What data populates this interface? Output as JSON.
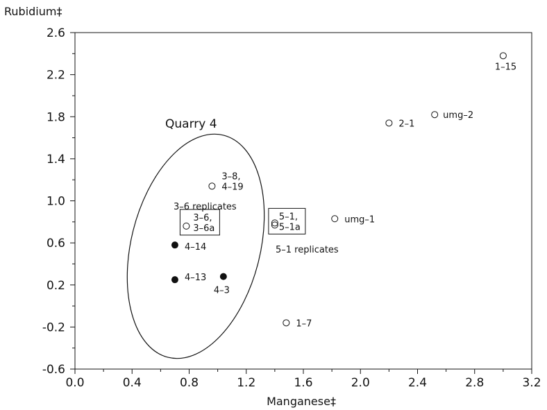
{
  "chart_data": {
    "type": "scatter",
    "xlabel": "Manganese‡",
    "ylabel": "Rubidium‡",
    "xlim": [
      0.0,
      3.2
    ],
    "ylim": [
      -0.6,
      2.6
    ],
    "xticks": [
      "0.0",
      "0.4",
      "0.8",
      "1.2",
      "1.6",
      "2.0",
      "2.4",
      "2.8",
      "3.2"
    ],
    "yticks": [
      "-0.6",
      "-0.2",
      "0.2",
      "0.6",
      "1.0",
      "1.4",
      "1.8",
      "2.2",
      "2.6"
    ],
    "grid": false,
    "points": [
      {
        "label": "1–15",
        "x": 3.0,
        "y": 2.38,
        "marker": "open"
      },
      {
        "label": "umg–2",
        "x": 2.52,
        "y": 1.82,
        "marker": "open"
      },
      {
        "label": "2–1",
        "x": 2.2,
        "y": 1.74,
        "marker": "open"
      },
      {
        "label": "3–8,",
        "label2": "4–19",
        "x": 0.96,
        "y": 1.14,
        "marker": "open"
      },
      {
        "label": "3–6,",
        "label2": "3–6a",
        "x": 0.78,
        "y": 0.76,
        "marker": "open",
        "boxed": true
      },
      {
        "label": "5–1,",
        "label2": "5–1a",
        "x": 1.4,
        "y": 0.77,
        "marker": "open",
        "boxed": true,
        "double": true
      },
      {
        "label": "umg–1",
        "x": 1.82,
        "y": 0.83,
        "marker": "open"
      },
      {
        "label": "4–14",
        "x": 0.7,
        "y": 0.58,
        "marker": "filled"
      },
      {
        "label": "4–13",
        "x": 0.7,
        "y": 0.25,
        "marker": "filled"
      },
      {
        "label": "4–3",
        "x": 1.04,
        "y": 0.28,
        "marker": "filled"
      },
      {
        "label": "1–7",
        "x": 1.48,
        "y": -0.16,
        "marker": "open"
      }
    ],
    "annotations": {
      "ellipse_label": "Quarry 4",
      "replicates_a": "3–6 replicates",
      "replicates_b": "5–1 replicates"
    }
  }
}
